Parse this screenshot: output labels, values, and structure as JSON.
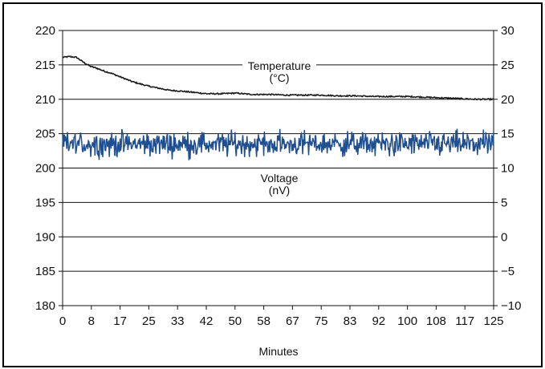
{
  "chart_data": {
    "type": "line",
    "title": "",
    "xlabel": "Minutes",
    "ylabel": "",
    "x_ticks": [
      "0",
      "8",
      "17",
      "25",
      "33",
      "42",
      "50",
      "58",
      "67",
      "75",
      "83",
      "92",
      "100",
      "108",
      "117",
      "125"
    ],
    "x_range": [
      0,
      125
    ],
    "ylim_left": [
      180,
      220
    ],
    "ylim_right": [
      -10,
      30
    ],
    "y_ticks_left": [
      180,
      185,
      190,
      195,
      200,
      205,
      210,
      215,
      220
    ],
    "y_ticks_right": [
      "−10",
      "−5",
      "0",
      "5",
      "10",
      "15",
      "20",
      "25",
      "30"
    ],
    "grid": "horizontal",
    "series": [
      {
        "name": "Temperature\n(°C)",
        "axis": "right",
        "color": "#1a1a1a",
        "x": [
          0,
          2,
          4,
          6,
          8,
          10,
          12,
          14,
          16,
          18,
          20,
          22,
          25,
          28,
          31,
          34,
          38,
          42,
          46,
          50,
          55,
          60,
          65,
          70,
          75,
          80,
          85,
          90,
          95,
          100,
          105,
          110,
          115,
          120,
          125
        ],
        "values": [
          26.1,
          26.2,
          26.1,
          25.4,
          24.8,
          24.5,
          24.1,
          23.8,
          23.4,
          23.0,
          22.6,
          22.3,
          21.9,
          21.6,
          21.3,
          21.2,
          21.0,
          20.8,
          20.8,
          20.9,
          20.7,
          20.7,
          20.6,
          20.6,
          20.6,
          20.5,
          20.5,
          20.4,
          20.4,
          20.4,
          20.3,
          20.2,
          20.1,
          20.0,
          20.0
        ]
      },
      {
        "name": "Voltage\n(nV)",
        "axis": "right",
        "color": "#1f4e91",
        "mean": 13.5,
        "range": [
          10.4,
          16.3
        ],
        "x_range": [
          0,
          125
        ]
      }
    ],
    "annotations": [
      {
        "text": "Temperature\n(°C)",
        "series": "Temperature\n(°C)"
      },
      {
        "text": "Voltage\n(nV)",
        "series": "Voltage\n(nV)"
      }
    ]
  }
}
